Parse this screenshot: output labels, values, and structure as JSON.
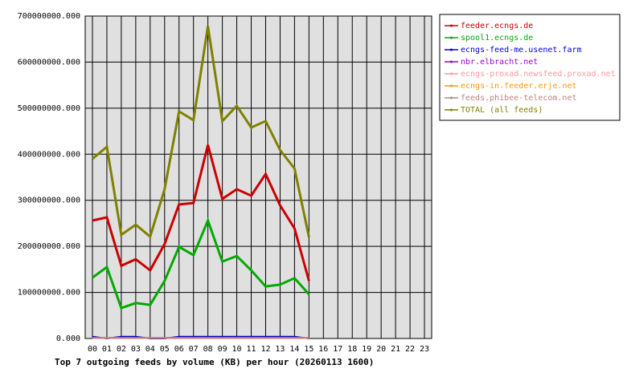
{
  "chart_data": {
    "type": "line",
    "title": "Top 7 outgoing feeds by volume (KB) per hour (20260113 1600)",
    "categories": [
      "00",
      "01",
      "02",
      "03",
      "04",
      "05",
      "06",
      "07",
      "08",
      "09",
      "10",
      "11",
      "12",
      "13",
      "14",
      "15",
      "16",
      "17",
      "18",
      "19",
      "20",
      "21",
      "22",
      "23"
    ],
    "ylim": [
      0,
      700000000
    ],
    "yticks": [
      {
        "value": 0,
        "label": "0.000"
      },
      {
        "value": 100000000,
        "label": "100000000.000"
      },
      {
        "value": 200000000,
        "label": "200000000.000"
      },
      {
        "value": 300000000,
        "label": "300000000.000"
      },
      {
        "value": 400000000,
        "label": "400000000.000"
      },
      {
        "value": 500000000,
        "label": "500000000.000"
      },
      {
        "value": 600000000,
        "label": "600000000.000"
      },
      {
        "value": 700000000,
        "label": "700000000.000"
      }
    ],
    "grid": true,
    "legend": "right",
    "series": [
      {
        "name": "feeder.ecngs.de",
        "color": "#cc0000",
        "values": [
          256000000,
          263000000,
          158000000,
          172000000,
          148000000,
          205000000,
          291000000,
          294000000,
          420000000,
          303000000,
          324000000,
          310000000,
          357000000,
          289000000,
          239000000,
          125000000,
          null,
          null,
          null,
          null,
          null,
          null,
          null,
          null
        ]
      },
      {
        "name": "spool1.ecngs.de",
        "color": "#00aa00",
        "values": [
          132000000,
          155000000,
          66000000,
          77000000,
          73000000,
          125000000,
          199000000,
          181000000,
          256000000,
          167000000,
          179000000,
          148000000,
          113000000,
          117000000,
          131000000,
          96000000,
          null,
          null,
          null,
          null,
          null,
          null,
          null,
          null
        ]
      },
      {
        "name": "ecngs-feed-me.usenet.farm",
        "color": "#0000cc",
        "values": [
          4000000,
          0,
          4000000,
          4000000,
          0,
          0,
          4000000,
          4000000,
          4000000,
          4000000,
          4000000,
          4000000,
          4000000,
          4000000,
          4000000,
          0,
          null,
          null,
          null,
          null,
          null,
          null,
          null,
          null
        ]
      },
      {
        "name": "nbr.elbracht.net",
        "color": "#9900cc",
        "values": [
          1000000,
          1000000,
          1000000,
          1000000,
          1000000,
          1000000,
          1000000,
          1000000,
          1000000,
          1000000,
          1000000,
          1000000,
          1000000,
          1000000,
          1000000,
          1000000,
          null,
          null,
          null,
          null,
          null,
          null,
          null,
          null
        ]
      },
      {
        "name": "ecngs-proxad.newsfeed.proxad.net",
        "color": "#ff9999",
        "values": [
          1000000,
          1000000,
          1000000,
          1000000,
          1000000,
          1000000,
          1000000,
          1000000,
          1000000,
          1000000,
          1000000,
          1000000,
          1000000,
          1000000,
          1000000,
          1000000,
          null,
          null,
          null,
          null,
          null,
          null,
          null,
          null
        ]
      },
      {
        "name": "ecngs-in.feeder.erje.net",
        "color": "#ff9900",
        "values": [
          1000000,
          1000000,
          1000000,
          1000000,
          1000000,
          1000000,
          1000000,
          1000000,
          1000000,
          1000000,
          1000000,
          1000000,
          1000000,
          1000000,
          1000000,
          1000000,
          null,
          null,
          null,
          null,
          null,
          null,
          null,
          null
        ]
      },
      {
        "name": "feeds.phibee-telecom.net",
        "color": "#c08080",
        "values": [
          1000000,
          1000000,
          1000000,
          1000000,
          1000000,
          1000000,
          1000000,
          1000000,
          1000000,
          1000000,
          1000000,
          1000000,
          1000000,
          1000000,
          1000000,
          1000000,
          null,
          null,
          null,
          null,
          null,
          null,
          null,
          null
        ]
      },
      {
        "name": "TOTAL (all feeds)",
        "color": "#808000",
        "values": [
          390000000,
          416000000,
          225000000,
          247000000,
          221000000,
          324000000,
          493000000,
          474000000,
          678000000,
          472000000,
          505000000,
          458000000,
          472000000,
          409000000,
          369000000,
          220000000,
          null,
          null,
          null,
          null,
          null,
          null,
          null,
          null
        ]
      }
    ]
  }
}
